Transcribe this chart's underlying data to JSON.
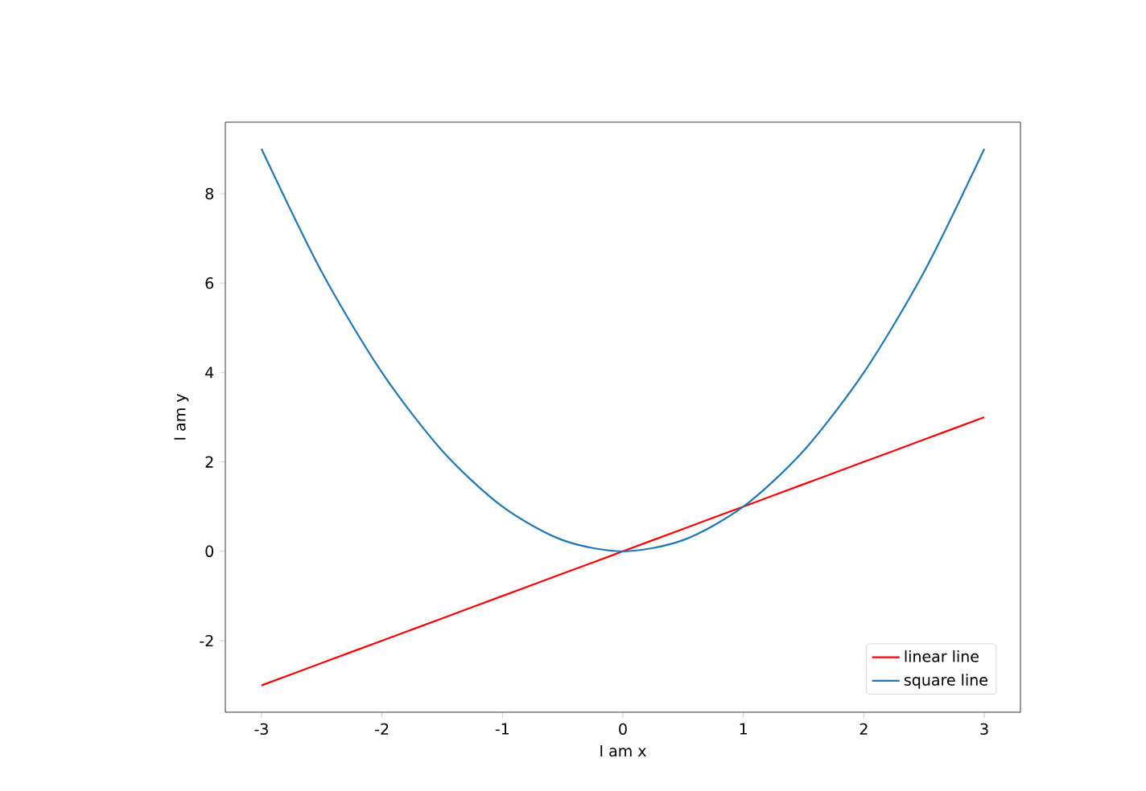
{
  "chart_data": {
    "type": "line",
    "xlabel": "I am x",
    "ylabel": "I am y",
    "x": [
      -3,
      -2.5,
      -2,
      -1.5,
      -1,
      -0.5,
      0,
      0.5,
      1,
      1.5,
      2,
      2.5,
      3
    ],
    "series": [
      {
        "name": "linear line",
        "color": "#ff0000",
        "values": [
          -3,
          -2.5,
          -2,
          -1.5,
          -1,
          -0.5,
          0,
          0.5,
          1,
          1.5,
          2,
          2.5,
          3
        ]
      },
      {
        "name": "square line",
        "color": "#1f77b4",
        "values": [
          9,
          6.25,
          4,
          2.25,
          1,
          0.25,
          0,
          0.25,
          1,
          2.25,
          4,
          6.25,
          9
        ]
      }
    ],
    "xlim": [
      -3.3,
      3.3
    ],
    "ylim": [
      -3.6,
      9.6
    ],
    "xticks": [
      -3,
      -2,
      -1,
      0,
      1,
      2,
      3
    ],
    "yticks": [
      -2,
      0,
      2,
      4,
      6,
      8
    ],
    "legend": "bottom right",
    "grid": false
  }
}
